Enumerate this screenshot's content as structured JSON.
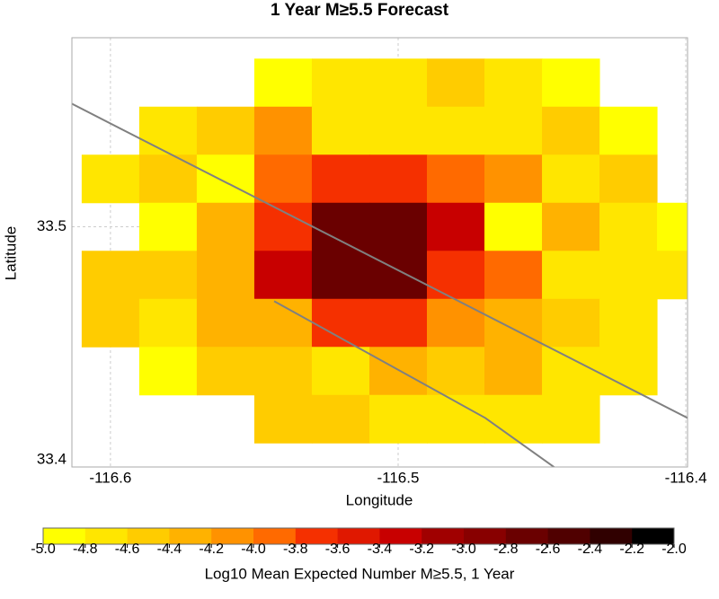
{
  "chart_data": {
    "type": "heatmap",
    "title": "1 Year M≥5.5 Forecast",
    "x_label": "Longitude",
    "y_label": "Latitude",
    "xlim": [
      -116.6134,
      -116.3994
    ],
    "ylim": [
      33.4,
      33.5787
    ],
    "xticks": [
      -116.6,
      -116.5,
      -116.4
    ],
    "yticks": [
      33.5,
      33.4
    ],
    "grid": true,
    "lon": [
      -116.6,
      -116.58,
      -116.56,
      -116.54,
      -116.52,
      -116.5,
      -116.48,
      -116.46,
      -116.44,
      -116.42,
      -116.4
    ],
    "lat": [
      33.56,
      33.54,
      33.52,
      33.5,
      33.48,
      33.46,
      33.44,
      33.42
    ],
    "cell_size": [
      0.02,
      0.02
    ],
    "z": [
      [
        null,
        null,
        null,
        -4.9,
        -4.7,
        -4.7,
        -4.5,
        -4.7,
        -4.9,
        null,
        null
      ],
      [
        null,
        -4.7,
        -4.5,
        -4.1,
        -4.7,
        -4.7,
        -4.7,
        -4.7,
        -4.5,
        -4.9,
        null
      ],
      [
        -4.7,
        -4.5,
        -4.9,
        -3.9,
        -3.7,
        -3.7,
        -3.9,
        -4.1,
        -4.7,
        -4.5,
        null
      ],
      [
        null,
        -4.9,
        -4.3,
        -3.7,
        -2.7,
        -2.7,
        -3.3,
        -4.9,
        -4.3,
        -4.7,
        -4.9
      ],
      [
        -4.5,
        -4.5,
        -4.3,
        -3.3,
        -2.7,
        -2.7,
        -3.7,
        -3.9,
        -4.7,
        -4.7,
        -4.7
      ],
      [
        -4.5,
        -4.7,
        -4.3,
        -4.3,
        -3.7,
        -3.7,
        -4.1,
        -4.3,
        -4.5,
        -4.7,
        null
      ],
      [
        null,
        -4.9,
        -4.5,
        -4.5,
        -4.7,
        -4.3,
        -4.5,
        -4.3,
        -4.7,
        -4.7,
        null
      ],
      [
        null,
        null,
        null,
        -4.5,
        -4.5,
        -4.7,
        -4.7,
        -4.7,
        -4.7,
        null,
        null
      ]
    ],
    "lines": [
      {
        "color": "#808080",
        "lon": [
          -116.6134,
          -116.3994
        ],
        "lat": [
          33.5512,
          33.4204
        ]
      },
      {
        "color": "#808080",
        "lon": [
          -116.5431,
          -116.4697,
          -116.4456
        ],
        "lat": [
          33.469,
          33.4204,
          33.3998
        ]
      }
    ],
    "colorbar": {
      "label": "Log10 Mean Expected Number M≥5.5, 1 Year",
      "lim": [
        -5,
        -2
      ],
      "colors": [
        "#ffff00",
        "#ffe600",
        "#ffcc00",
        "#ffb200",
        "#ff9200",
        "#ff6a00",
        "#f53000",
        "#e01800",
        "#c80000",
        "#a00000",
        "#880000",
        "#6a0000",
        "#500000",
        "#300000",
        "#000000"
      ],
      "ticks": [
        {
          "value": -5,
          "label": "-5.0"
        },
        -4.8,
        -4.6,
        -4.4,
        -4.2,
        {
          "value": -4,
          "label": "-4.0"
        },
        -3.8,
        -3.6,
        -3.4,
        -3.2,
        {
          "value": -3,
          "label": "-3.0"
        },
        -2.8,
        -2.6,
        -2.4,
        -2.2,
        {
          "value": -2,
          "label": "-2.0"
        }
      ]
    }
  }
}
